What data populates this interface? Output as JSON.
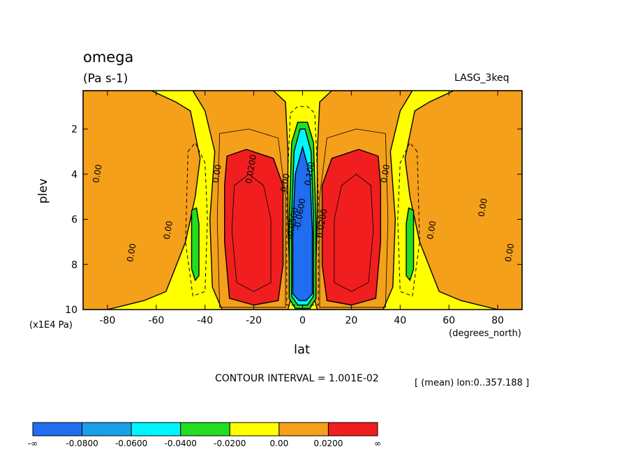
{
  "chart_data": {
    "type": "heatmap",
    "variable": "omega",
    "title": "omega",
    "units_label": "(Pa s-1)",
    "dataset": "LASG_3keq",
    "xlabel": "lat",
    "ylabel": "plev",
    "x_units": "(degrees_north)",
    "y_units": "(x1E4 Pa)",
    "x_ticks": [
      "-80",
      "-60",
      "-40",
      "-20",
      "0",
      "20",
      "40",
      "60",
      "80"
    ],
    "x_tick_values": [
      -80,
      -60,
      -40,
      -20,
      0,
      20,
      40,
      60,
      80
    ],
    "y_ticks": [
      "2",
      "4",
      "6",
      "8",
      "10"
    ],
    "y_tick_values": [
      2,
      4,
      6,
      8,
      10
    ],
    "xlim": [
      -90,
      90
    ],
    "ylim": [
      0.3,
      10
    ],
    "contour_interval_text": "CONTOUR INTERVAL = 1.001E-02",
    "subset_text": "[ (mean) lon:0..357.188 ]",
    "contour_labels": [
      "0.00",
      "0.00",
      "0.00",
      "0.00",
      "0.0200",
      "0.00",
      "-0.0500",
      "-0.0600",
      "0.100",
      "0.0200",
      "0.00",
      "0.00",
      "0.00",
      "0.00"
    ],
    "colorbar": {
      "levels": [
        "-∞",
        "-0.0800",
        "-0.0600",
        "-0.0400",
        "-0.0200",
        "0.00",
        "0.0200",
        "∞"
      ],
      "colors": [
        "#1f6ef0",
        "#1aa0ea",
        "#00f5ff",
        "#22dd22",
        "#ffff00",
        "#f5a01a",
        "#f01e1e"
      ]
    },
    "regions": [
      {
        "type": "rect",
        "lon0": -90,
        "lon1": 90,
        "p0": 0.3,
        "p1": 10,
        "color": "#ffff00"
      },
      {
        "type": "poly",
        "color": "#f5a01a",
        "pts": [
          [
            -90,
            0.3
          ],
          [
            -62,
            0.3
          ],
          [
            -52,
            0.8
          ],
          [
            -46,
            1.2
          ],
          [
            -42,
            3.3
          ],
          [
            -44,
            5
          ],
          [
            -48,
            7
          ],
          [
            -56,
            9.2
          ],
          [
            -65,
            9.6
          ],
          [
            -80,
            10
          ],
          [
            -90,
            10
          ]
        ]
      },
      {
        "type": "poly",
        "color": "#f5a01a",
        "pts": [
          [
            90,
            0.3
          ],
          [
            62,
            0.3
          ],
          [
            52,
            0.8
          ],
          [
            46,
            1.2
          ],
          [
            42,
            3.3
          ],
          [
            44,
            5
          ],
          [
            48,
            7
          ],
          [
            56,
            9.2
          ],
          [
            65,
            9.6
          ],
          [
            80,
            10
          ],
          [
            90,
            10
          ]
        ]
      },
      {
        "type": "poly",
        "color": "#f5a01a",
        "pts": [
          [
            -45,
            0.3
          ],
          [
            -12,
            0.3
          ],
          [
            -7,
            0.8
          ],
          [
            -6,
            3
          ],
          [
            -6,
            6
          ],
          [
            -5,
            9.6
          ],
          [
            -6,
            10
          ],
          [
            -33,
            10
          ],
          [
            -37,
            9
          ],
          [
            -38,
            6
          ],
          [
            -36,
            3
          ],
          [
            -40,
            1.2
          ]
        ]
      },
      {
        "type": "poly",
        "color": "#f5a01a",
        "pts": [
          [
            45,
            0.3
          ],
          [
            12,
            0.3
          ],
          [
            7,
            0.8
          ],
          [
            6,
            3
          ],
          [
            6,
            6
          ],
          [
            5,
            9.6
          ],
          [
            6,
            10
          ],
          [
            33,
            10
          ],
          [
            37,
            9
          ],
          [
            38,
            6
          ],
          [
            36,
            3
          ],
          [
            40,
            1.2
          ]
        ]
      },
      {
        "type": "poly",
        "color": "#f01e1e",
        "pts": [
          [
            -31,
            3.2
          ],
          [
            -23,
            2.9
          ],
          [
            -12,
            3.3
          ],
          [
            -8,
            4.5
          ],
          [
            -8,
            8
          ],
          [
            -10,
            9.6
          ],
          [
            -20,
            9.8
          ],
          [
            -30,
            9.5
          ],
          [
            -32,
            7
          ],
          [
            -32,
            4.5
          ]
        ]
      },
      {
        "type": "poly",
        "color": "#f01e1e",
        "pts": [
          [
            31,
            3.2
          ],
          [
            23,
            2.9
          ],
          [
            12,
            3.3
          ],
          [
            8,
            4.5
          ],
          [
            8,
            8
          ],
          [
            10,
            9.6
          ],
          [
            20,
            9.8
          ],
          [
            30,
            9.5
          ],
          [
            32,
            7
          ],
          [
            32,
            4.5
          ]
        ]
      },
      {
        "type": "poly",
        "color": "#22dd22",
        "pts": [
          [
            -4.5,
            2.6
          ],
          [
            -2,
            1.7
          ],
          [
            2,
            1.7
          ],
          [
            4.5,
            2.6
          ],
          [
            5.5,
            6
          ],
          [
            5.5,
            9.5
          ],
          [
            3,
            9.95
          ],
          [
            -3,
            9.95
          ],
          [
            -5.5,
            9.5
          ],
          [
            -5.5,
            6
          ]
        ]
      },
      {
        "type": "poly",
        "color": "#00f5ff",
        "pts": [
          [
            -3.5,
            3
          ],
          [
            -1,
            2
          ],
          [
            1,
            2
          ],
          [
            3.5,
            3
          ],
          [
            4.5,
            6
          ],
          [
            4.5,
            9.4
          ],
          [
            2,
            9.8
          ],
          [
            -2,
            9.8
          ],
          [
            -4.5,
            9.4
          ],
          [
            -4.5,
            6
          ]
        ]
      },
      {
        "type": "poly",
        "color": "#1f6ef0",
        "pts": [
          [
            -3,
            4
          ],
          [
            0,
            2.8
          ],
          [
            3,
            4
          ],
          [
            4,
            6.5
          ],
          [
            4,
            9.3
          ],
          [
            1.5,
            9.6
          ],
          [
            -1.5,
            9.6
          ],
          [
            -4,
            9.3
          ],
          [
            -4,
            6.5
          ]
        ]
      },
      {
        "type": "poly",
        "color": "#22dd22",
        "pts": [
          [
            -45.5,
            5.6
          ],
          [
            -43.5,
            5.5
          ],
          [
            -42.5,
            6.2
          ],
          [
            -42.5,
            8.5
          ],
          [
            -44,
            8.7
          ],
          [
            -45.5,
            8.2
          ]
        ]
      },
      {
        "type": "poly",
        "color": "#22dd22",
        "pts": [
          [
            45.5,
            5.6
          ],
          [
            43.5,
            5.5
          ],
          [
            42.5,
            6.2
          ],
          [
            42.5,
            8.5
          ],
          [
            44,
            8.7
          ],
          [
            45.5,
            8.2
          ]
        ]
      }
    ]
  }
}
